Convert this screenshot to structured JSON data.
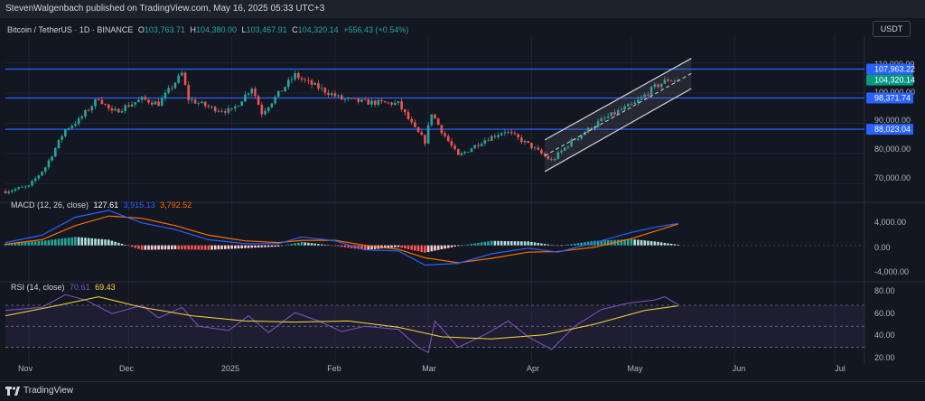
{
  "header": {
    "published": "StevenWalgenbach published on TradingView.com, May 16, 2025 05:33 UTC+3",
    "currency": "USDT"
  },
  "legends": {
    "main": {
      "symbol": "Bitcoin / TetherUS · 1D · BINANCE",
      "o_label": "O",
      "o": "103,763.71",
      "h_label": "H",
      "h": "104,380.00",
      "l_label": "L",
      "l": "103,467.91",
      "c_label": "C",
      "c": "104,320.14",
      "change": "+556.43 (+0.54%)"
    },
    "macd": {
      "label": "MACD (12, 26, close)",
      "v1": "127.61",
      "v2": "3,915.13",
      "v3": "3,792.52"
    },
    "rsi": {
      "label": "RSI (14, close)",
      "v1": "70.61",
      "v2": "69.43"
    }
  },
  "footer": {
    "brand": "TradingView"
  },
  "colors": {
    "up": "#26a69a",
    "down": "#ef5350",
    "level": "#2962ff",
    "price_tag": "#089981",
    "macd_line": "#2962ff",
    "signal_line": "#ff6d00",
    "rsi_line": "#7e57c2",
    "rsi_ma": "#fdd835"
  },
  "chart_data": {
    "type": "candlestick",
    "title": "Bitcoin / TetherUS · 1D · BINANCE",
    "x_ticks": [
      "Nov",
      "Dec",
      "2025",
      "Feb",
      "Mar",
      "Apr",
      "May",
      "Jun",
      "Jul"
    ],
    "price_axis": {
      "ticks": [
        "110,000.00",
        "100,000.00",
        "90,000.00",
        "80,000.00",
        "70,000.00"
      ],
      "ylim": [
        65000,
        112000
      ],
      "levels": [
        {
          "value": 107963.22,
          "label": "107,963.22"
        },
        {
          "value": 98371.74,
          "label": "98,371.74"
        },
        {
          "value": 88023.04,
          "label": "88,023.04"
        }
      ],
      "last_price": {
        "value": 104320.14,
        "label": "104,320.14"
      }
    },
    "price_path": [
      [
        "2024-10-25",
        67500
      ],
      [
        "2024-11-01",
        69000
      ],
      [
        "2024-11-06",
        75500
      ],
      [
        "2024-11-12",
        88000
      ],
      [
        "2024-11-16",
        91000
      ],
      [
        "2024-11-22",
        98500
      ],
      [
        "2024-11-26",
        93500
      ],
      [
        "2024-12-05",
        98000
      ],
      [
        "2024-12-10",
        96500
      ],
      [
        "2024-12-17",
        106500
      ],
      [
        "2024-12-19",
        98000
      ],
      [
        "2024-12-26",
        95000
      ],
      [
        "2025-01-01",
        94000
      ],
      [
        "2025-01-07",
        102000
      ],
      [
        "2025-01-10",
        93500
      ],
      [
        "2025-01-20",
        106000
      ],
      [
        "2025-01-22",
        104500
      ],
      [
        "2025-02-03",
        98000
      ],
      [
        "2025-02-10",
        97000
      ],
      [
        "2025-02-20",
        96500
      ],
      [
        "2025-02-25",
        88000
      ],
      [
        "2025-02-28",
        84000
      ],
      [
        "2025-03-02",
        93500
      ],
      [
        "2025-03-05",
        87500
      ],
      [
        "2025-03-10",
        79000
      ],
      [
        "2025-03-17",
        84000
      ],
      [
        "2025-03-24",
        87500
      ],
      [
        "2025-03-31",
        83000
      ],
      [
        "2025-04-07",
        77500
      ],
      [
        "2025-04-13",
        84000
      ],
      [
        "2025-04-22",
        91000
      ],
      [
        "2025-04-28",
        94500
      ],
      [
        "2025-05-02",
        96500
      ],
      [
        "2025-05-08",
        102000
      ],
      [
        "2025-05-12",
        104500
      ],
      [
        "2025-05-15",
        104300
      ]
    ],
    "channel": {
      "upper": [
        [
          "2025-04-05",
          84500
        ],
        [
          "2025-05-19",
          111500
        ]
      ],
      "lower": [
        [
          "2025-04-05",
          74000
        ],
        [
          "2025-05-19",
          101500
        ]
      ]
    },
    "macd": {
      "ticks": [
        "4,000.00",
        "0.00",
        "-4,000.00"
      ],
      "ylim": [
        -5500,
        7000
      ],
      "macd_line": [
        [
          "2024-10-25",
          500
        ],
        [
          "2024-11-05",
          1800
        ],
        [
          "2024-11-15",
          5000
        ],
        [
          "2024-11-25",
          6200
        ],
        [
          "2024-12-05",
          4000
        ],
        [
          "2024-12-15",
          2800
        ],
        [
          "2024-12-25",
          1000
        ],
        [
          "2025-01-05",
          300
        ],
        [
          "2025-01-15",
          300
        ],
        [
          "2025-01-22",
          1500
        ],
        [
          "2025-02-01",
          800
        ],
        [
          "2025-02-10",
          -800
        ],
        [
          "2025-02-20",
          -1000
        ],
        [
          "2025-02-28",
          -3500
        ],
        [
          "2025-03-10",
          -3200
        ],
        [
          "2025-03-20",
          -1500
        ],
        [
          "2025-03-31",
          -500
        ],
        [
          "2025-04-09",
          -1200
        ],
        [
          "2025-04-20",
          500
        ],
        [
          "2025-05-01",
          2300
        ],
        [
          "2025-05-08",
          3200
        ],
        [
          "2025-05-15",
          3915
        ]
      ],
      "signal_line": [
        [
          "2024-10-25",
          200
        ],
        [
          "2024-11-05",
          1000
        ],
        [
          "2024-11-15",
          3500
        ],
        [
          "2024-11-25",
          5200
        ],
        [
          "2024-12-05",
          4800
        ],
        [
          "2024-12-15",
          3500
        ],
        [
          "2024-12-25",
          1800
        ],
        [
          "2025-01-05",
          800
        ],
        [
          "2025-01-15",
          500
        ],
        [
          "2025-01-22",
          900
        ],
        [
          "2025-02-01",
          900
        ],
        [
          "2025-02-10",
          0
        ],
        [
          "2025-02-20",
          -700
        ],
        [
          "2025-02-28",
          -2200
        ],
        [
          "2025-03-10",
          -3100
        ],
        [
          "2025-03-20",
          -2300
        ],
        [
          "2025-03-31",
          -1200
        ],
        [
          "2025-04-09",
          -1100
        ],
        [
          "2025-04-20",
          -300
        ],
        [
          "2025-05-01",
          1200
        ],
        [
          "2025-05-08",
          2500
        ],
        [
          "2025-05-15",
          3792
        ]
      ]
    },
    "rsi": {
      "ticks": [
        "80.00",
        "60.00",
        "40.00",
        "20.00"
      ],
      "ylim": [
        15,
        88
      ],
      "bands": [
        70,
        50,
        30
      ],
      "rsi_line": [
        [
          "2024-10-25",
          65
        ],
        [
          "2024-11-05",
          68
        ],
        [
          "2024-11-12",
          80
        ],
        [
          "2024-11-18",
          75
        ],
        [
          "2024-11-26",
          62
        ],
        [
          "2024-12-05",
          70
        ],
        [
          "2024-12-10",
          58
        ],
        [
          "2024-12-17",
          68
        ],
        [
          "2024-12-22",
          50
        ],
        [
          "2024-12-31",
          46
        ],
        [
          "2025-01-06",
          60
        ],
        [
          "2025-01-12",
          44
        ],
        [
          "2025-01-20",
          63
        ],
        [
          "2025-01-27",
          55
        ],
        [
          "2025-02-03",
          45
        ],
        [
          "2025-02-10",
          50
        ],
        [
          "2025-02-20",
          47
        ],
        [
          "2025-02-26",
          30
        ],
        [
          "2025-03-01",
          25
        ],
        [
          "2025-03-03",
          55
        ],
        [
          "2025-03-10",
          30
        ],
        [
          "2025-03-18",
          42
        ],
        [
          "2025-03-25",
          55
        ],
        [
          "2025-03-31",
          40
        ],
        [
          "2025-04-07",
          28
        ],
        [
          "2025-04-14",
          50
        ],
        [
          "2025-04-22",
          66
        ],
        [
          "2025-04-30",
          72
        ],
        [
          "2025-05-08",
          75
        ],
        [
          "2025-05-11",
          78
        ],
        [
          "2025-05-15",
          70.61
        ]
      ],
      "rsi_ma": [
        [
          "2024-10-25",
          60
        ],
        [
          "2024-11-10",
          70
        ],
        [
          "2024-11-22",
          78
        ],
        [
          "2024-12-05",
          68
        ],
        [
          "2024-12-20",
          60
        ],
        [
          "2025-01-05",
          55
        ],
        [
          "2025-01-20",
          54
        ],
        [
          "2025-02-05",
          55
        ],
        [
          "2025-02-20",
          49
        ],
        [
          "2025-03-05",
          40
        ],
        [
          "2025-03-20",
          38
        ],
        [
          "2025-04-05",
          42
        ],
        [
          "2025-04-20",
          52
        ],
        [
          "2025-05-05",
          65
        ],
        [
          "2025-05-15",
          69.43
        ]
      ]
    }
  }
}
